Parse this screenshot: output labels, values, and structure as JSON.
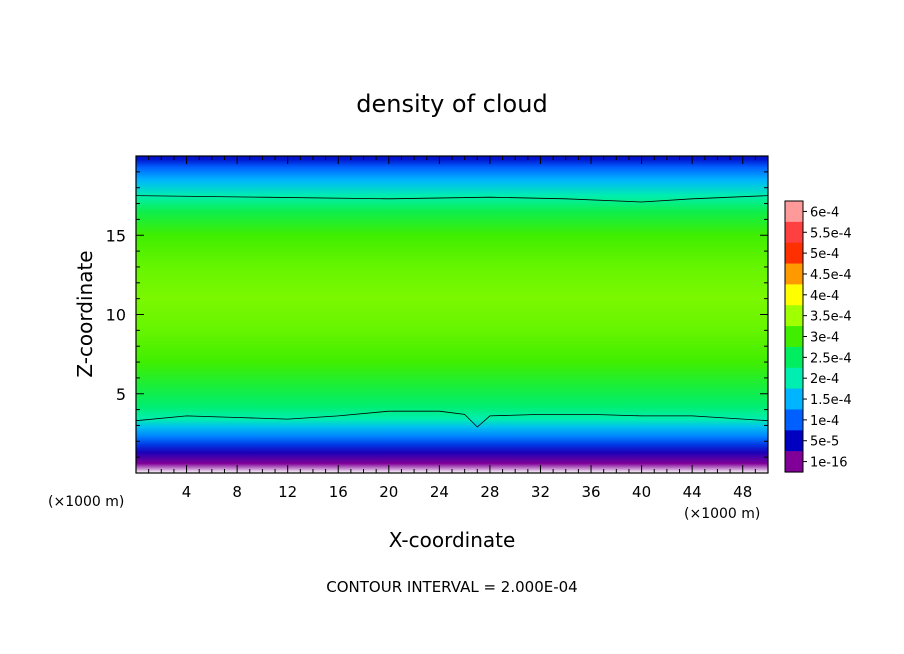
{
  "chart_data": {
    "type": "heatmap",
    "title": "density of cloud",
    "xlabel": "X-coordinate",
    "ylabel": "Z-coordinate",
    "x_unit_left": "(×1000 m)",
    "x_unit_right": "(×1000 m)",
    "xlim": [
      0,
      50
    ],
    "ylim": [
      0,
      20
    ],
    "x_ticks": [
      "4",
      "8",
      "12",
      "16",
      "20",
      "24",
      "28",
      "32",
      "36",
      "40",
      "44",
      "48"
    ],
    "y_ticks": [
      "5",
      "10",
      "15"
    ],
    "footer": "CONTOUR INTERVAL = 2.000E-04",
    "colorbar": {
      "labels": [
        "6e-4",
        "5.5e-4",
        "5e-4",
        "4.5e-4",
        "4e-4",
        "3.5e-4",
        "3e-4",
        "2.5e-4",
        "2e-4",
        "1.5e-4",
        "1e-4",
        "5e-5",
        "1e-16"
      ],
      "colors": [
        "#ff9a9a",
        "#ff4040",
        "#ff3000",
        "#ff9900",
        "#ffff00",
        "#a0ff00",
        "#40ee00",
        "#00ee60",
        "#00eeb0",
        "#00b4ff",
        "#0060ff",
        "#0000c0",
        "#800098"
      ]
    },
    "profile": {
      "z": [
        0.6,
        1.3,
        1.8,
        2.3,
        2.9,
        3.4,
        4.2,
        5.5,
        7.0,
        9.0,
        11.0,
        13.0,
        15.0,
        16.5,
        17.5,
        18.5,
        19.3,
        19.8
      ],
      "density": [
        1e-16,
        4e-05,
        8e-05,
        0.00012,
        0.00016,
        0.0002,
        0.00024,
        0.00027,
        0.0003,
        0.00032,
        0.00033,
        0.00032,
        0.0003,
        0.00026,
        0.0002,
        0.00015,
        0.0001,
        6e-05
      ]
    },
    "contour_lines": [
      {
        "level": 0.0002,
        "x": [
          0,
          4,
          8,
          12,
          16,
          20,
          24,
          26,
          27,
          28,
          32,
          36,
          40,
          44,
          50
        ],
        "z": [
          3.3,
          3.6,
          3.5,
          3.4,
          3.6,
          3.9,
          3.9,
          3.7,
          2.9,
          3.6,
          3.7,
          3.7,
          3.6,
          3.6,
          3.3
        ]
      },
      {
        "level": 0.0002,
        "x": [
          0,
          10,
          20,
          28,
          34,
          40,
          44,
          50
        ],
        "z": [
          17.5,
          17.4,
          17.3,
          17.4,
          17.3,
          17.1,
          17.3,
          17.5
        ]
      }
    ]
  }
}
